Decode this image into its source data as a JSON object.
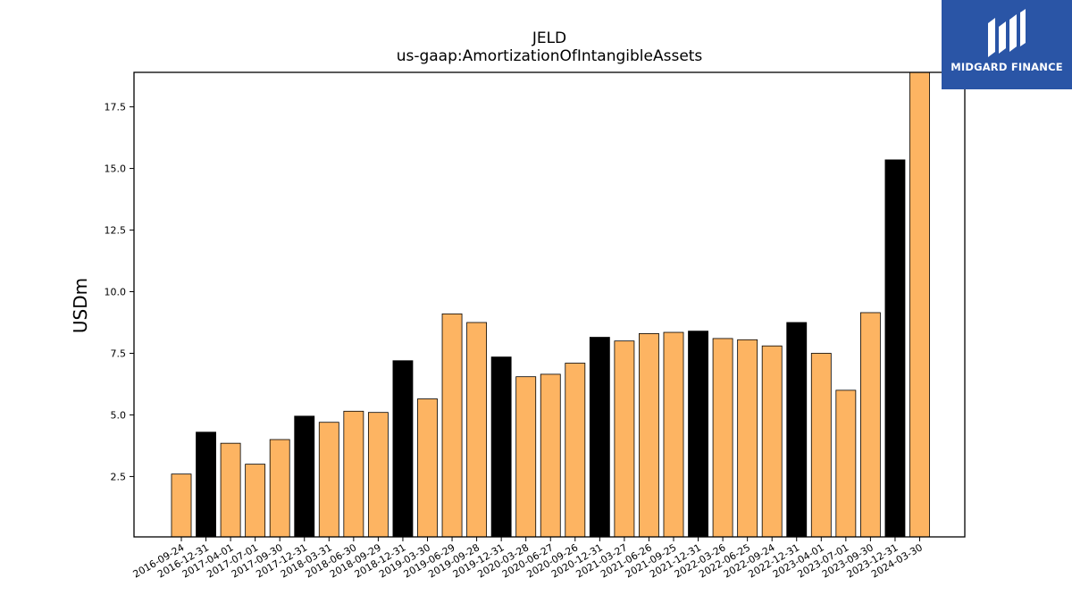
{
  "chart_data": {
    "type": "bar",
    "title": "JELD",
    "subtitle": "us-gaap:AmortizationOfIntangibleAssets",
    "ylabel": "USDm",
    "xlabel": "",
    "ylim": [
      0.05,
      18.9
    ],
    "yticks": [
      2.5,
      5.0,
      7.5,
      10.0,
      12.5,
      15.0,
      17.5
    ],
    "ytick_labels": [
      "2.5",
      "5.0",
      "7.5",
      "10.0",
      "12.5",
      "15.0",
      "17.5"
    ],
    "categories": [
      "2016-09-24",
      "2016-12-31",
      "2017-04-01",
      "2017-07-01",
      "2017-09-30",
      "2017-12-31",
      "2018-03-31",
      "2018-06-30",
      "2018-09-29",
      "2018-12-31",
      "2019-03-30",
      "2019-06-29",
      "2019-09-28",
      "2019-12-31",
      "2020-03-28",
      "2020-06-27",
      "2020-09-26",
      "2020-12-31",
      "2021-03-27",
      "2021-06-26",
      "2021-09-25",
      "2021-12-31",
      "2022-03-26",
      "2022-06-25",
      "2022-09-24",
      "2022-12-31",
      "2023-04-01",
      "2023-07-01",
      "2023-09-30",
      "2023-12-31",
      "2024-03-30"
    ],
    "values": [
      2.6,
      4.3,
      3.85,
      3.0,
      4.0,
      4.95,
      4.7,
      5.15,
      5.1,
      7.2,
      5.65,
      9.1,
      8.75,
      7.35,
      6.55,
      6.65,
      7.1,
      8.15,
      8.0,
      8.3,
      8.35,
      8.4,
      8.1,
      8.05,
      7.8,
      8.75,
      7.5,
      6.0,
      9.15,
      15.35,
      18.9
    ],
    "bar_colors": [
      "#fdb462",
      "#000000",
      "#fdb462",
      "#fdb462",
      "#fdb462",
      "#000000",
      "#fdb462",
      "#fdb462",
      "#fdb462",
      "#000000",
      "#fdb462",
      "#fdb462",
      "#fdb462",
      "#000000",
      "#fdb462",
      "#fdb462",
      "#fdb462",
      "#000000",
      "#fdb462",
      "#fdb462",
      "#fdb462",
      "#000000",
      "#fdb462",
      "#fdb462",
      "#fdb462",
      "#000000",
      "#fdb462",
      "#fdb462",
      "#fdb462",
      "#000000",
      "#fdb462"
    ],
    "grid": false,
    "legend": "none"
  },
  "logo": {
    "text": "MIDGARD FINANCE",
    "background": "#2a55a6"
  }
}
